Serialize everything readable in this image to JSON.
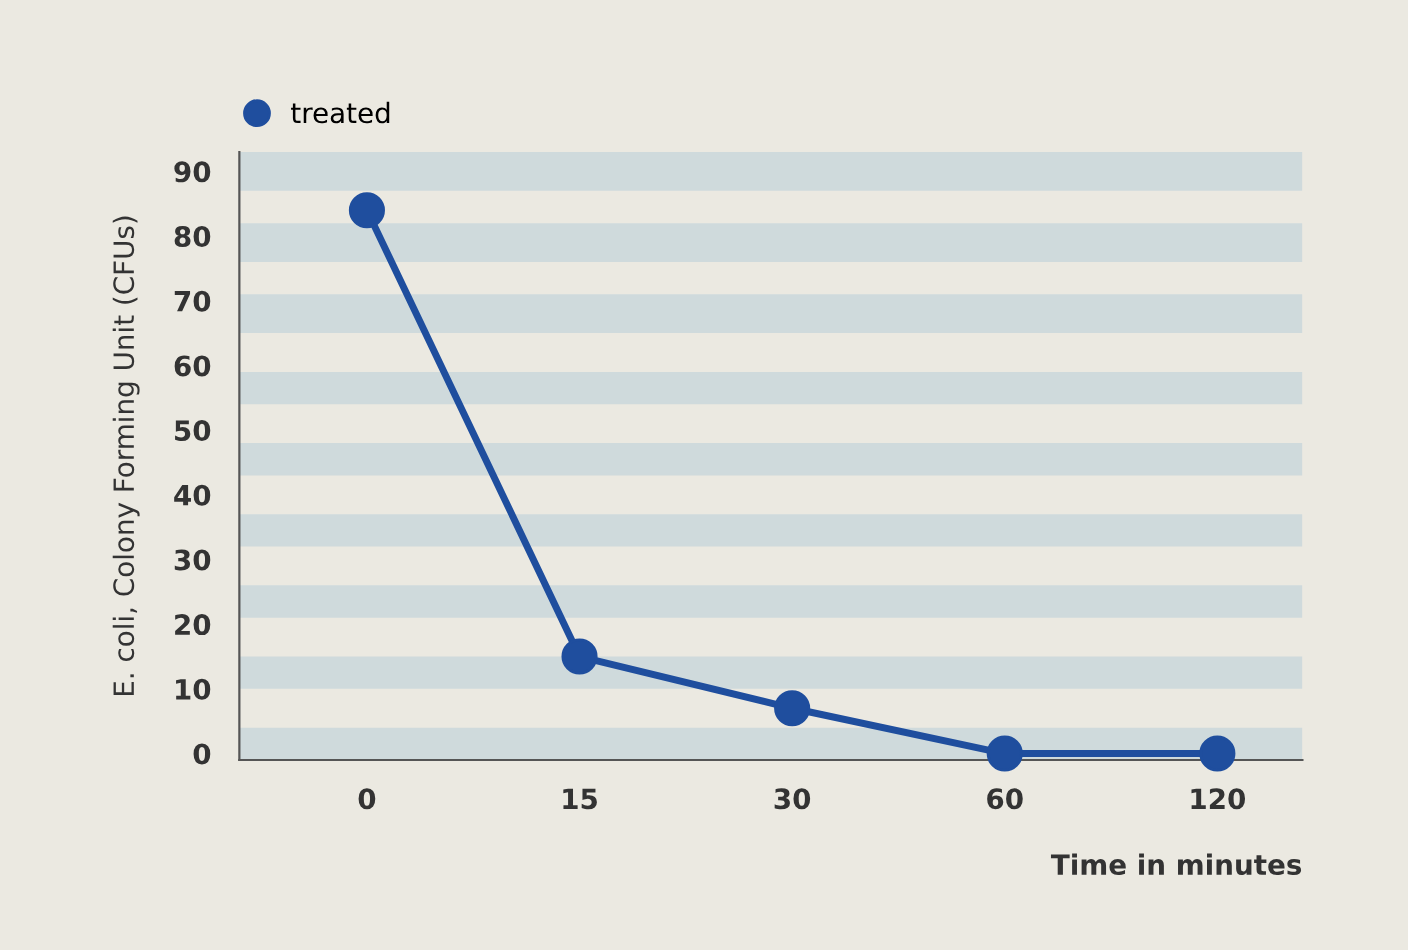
{
  "chart_data": {
    "type": "line",
    "categories": [
      "0",
      "15",
      "30",
      "60",
      "120"
    ],
    "series": [
      {
        "name": "treated",
        "color": "#1f4e9e",
        "values": [
          84,
          15,
          7,
          0,
          0
        ]
      }
    ],
    "xlabel": "Time in minutes",
    "ylabel": "E. coli, Colony Forming Unit (CFUs)",
    "ylim": [
      -1,
      93
    ],
    "yticks": [
      0,
      10,
      20,
      30,
      40,
      50,
      60,
      70,
      80,
      90
    ],
    "bands": [
      {
        "axis": "y",
        "from": -1,
        "to": 4,
        "color": "#cfdadc"
      },
      {
        "axis": "y",
        "from": 10,
        "to": 15,
        "color": "#cfdadc"
      },
      {
        "axis": "y",
        "from": 21,
        "to": 26,
        "color": "#cfdadc"
      },
      {
        "axis": "y",
        "from": 32,
        "to": 37,
        "color": "#cfdadc"
      },
      {
        "axis": "y",
        "from": 43,
        "to": 48,
        "color": "#cfdadc"
      },
      {
        "axis": "y",
        "from": 54,
        "to": 59,
        "color": "#cfdadc"
      },
      {
        "axis": "y",
        "from": 65,
        "to": 71,
        "color": "#cfdadc"
      },
      {
        "axis": "y",
        "from": 76,
        "to": 82,
        "color": "#cfdadc"
      },
      {
        "axis": "y",
        "from": 87,
        "to": 93,
        "color": "#cfdadc"
      }
    ],
    "marker": "circle",
    "line_style": "solid",
    "legend": "top left",
    "grid": false
  }
}
